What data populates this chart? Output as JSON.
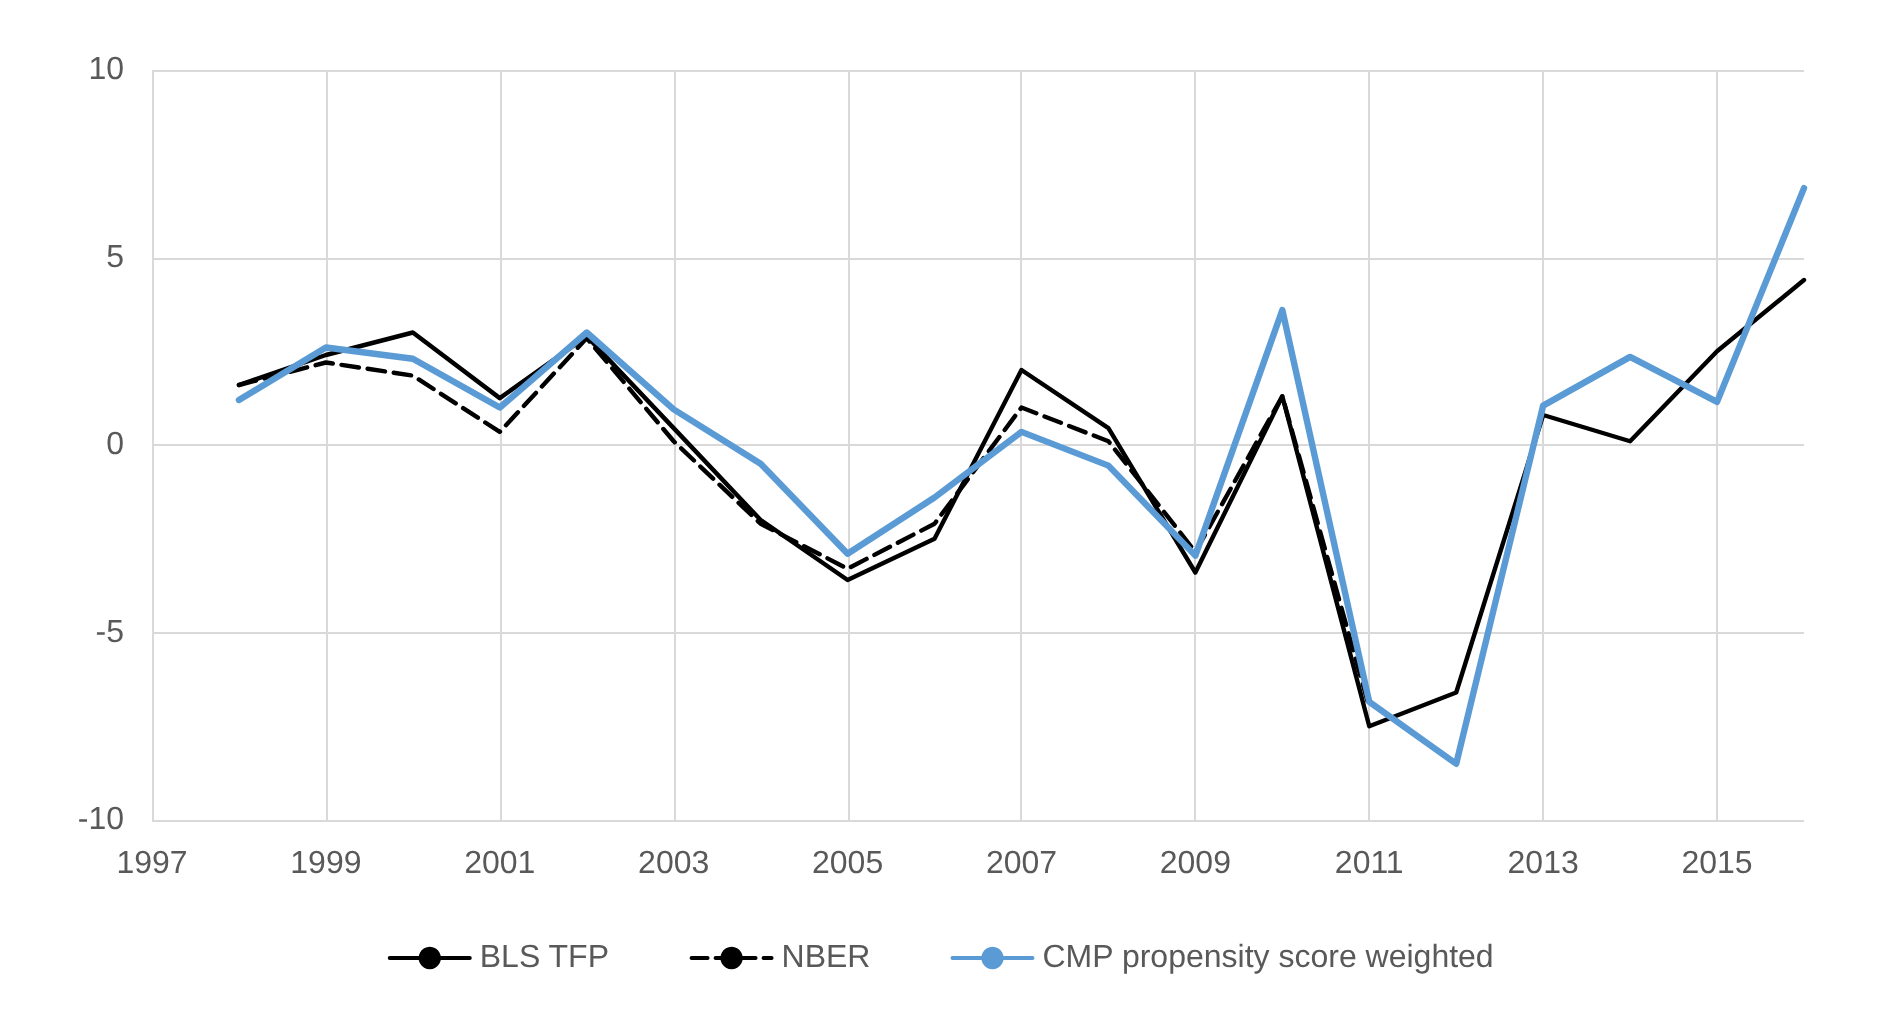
{
  "chart_data": {
    "type": "line",
    "x": [
      1998,
      1999,
      2000,
      2001,
      2002,
      2003,
      2004,
      2005,
      2006,
      2007,
      2008,
      2009,
      2010,
      2011,
      2012,
      2013,
      2014,
      2015,
      2016
    ],
    "series": [
      {
        "name": "BLS TFP",
        "color": "#000000",
        "line_style": "solid",
        "values": [
          1.6,
          2.4,
          3.0,
          1.25,
          2.9,
          0.45,
          -2.0,
          -3.6,
          -2.5,
          2.0,
          0.45,
          -3.4,
          1.3,
          -7.5,
          -6.6,
          0.8,
          0.1,
          2.5,
          4.4
        ]
      },
      {
        "name": "NBER",
        "color": "#000000",
        "line_style": "dashed",
        "values": [
          1.6,
          2.2,
          1.85,
          0.35,
          2.85,
          0.1,
          -2.1,
          -3.3,
          -2.1,
          1.0,
          0.1,
          -2.85,
          1.3,
          -7.0,
          null,
          null,
          null,
          null,
          null
        ]
      },
      {
        "name": "CMP propensity score weighted",
        "color": "#5b9bd5",
        "line_style": "solid",
        "values": [
          1.2,
          2.6,
          2.3,
          1.0,
          3.0,
          0.95,
          -0.5,
          -2.9,
          -1.4,
          0.35,
          -0.55,
          -2.95,
          3.6,
          -6.85,
          -8.5,
          1.05,
          2.35,
          1.15,
          6.85
        ]
      }
    ],
    "xlim": [
      1997,
      2016
    ],
    "xticks": [
      1997,
      1999,
      2001,
      2003,
      2005,
      2007,
      2009,
      2011,
      2013,
      2015
    ],
    "ylim": [
      -10,
      10
    ],
    "yticks": [
      -10,
      -5,
      0,
      5,
      10
    ],
    "grid": true,
    "legend": "bottom",
    "marker": "none"
  }
}
